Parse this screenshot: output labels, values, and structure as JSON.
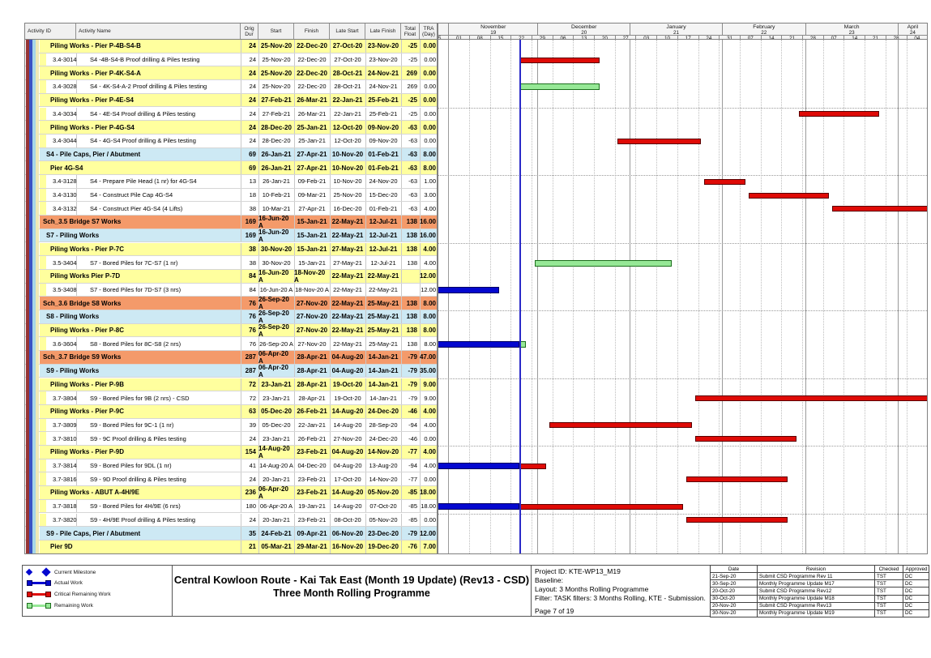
{
  "colors": {
    "band_yellow": "#FFFF9E",
    "band_cyan": "#CDE9F4",
    "band_orange": "#F49A6A",
    "bar_critical": "#DF0A06",
    "bar_remaining": "#96E896",
    "bar_actual": "#0408CF",
    "data_date_line": "#2A2AC8",
    "legend_blue": "#0408CF",
    "stripes": [
      "#963434",
      "#3A52C4",
      "#A6D6E8",
      "#EFE9B4"
    ]
  },
  "table_header": {
    "activity_id": "Activity ID",
    "activity_name": "Activity Name",
    "orig_dur": "Orig Dur",
    "start": "Start",
    "finish": "Finish",
    "late_start": "Late Start",
    "late_finish": "Late Finish",
    "total_float": "Total Float",
    "tra": "TRA (Day)"
  },
  "chart_data": {
    "type": "gantt",
    "data_date": "2020-11-25",
    "timeline": {
      "origin": "2020-10-25",
      "end": "2021-04-11",
      "week_labels": [
        "25",
        "01",
        "08",
        "15",
        "22",
        "29",
        "06",
        "13",
        "20",
        "27",
        "03",
        "10",
        "17",
        "24",
        "31",
        "07",
        "14",
        "21",
        "28",
        "07",
        "14",
        "21",
        "28",
        "04"
      ],
      "months": [
        {
          "label": "",
          "num": "",
          "from": "2020-10-25"
        },
        {
          "label": "November",
          "num": "19",
          "from": "2020-11-01"
        },
        {
          "label": "December",
          "num": "20",
          "from": "2020-12-01"
        },
        {
          "label": "January",
          "num": "21",
          "from": "2021-01-01"
        },
        {
          "label": "February",
          "num": "22",
          "from": "2021-02-01"
        },
        {
          "label": "March",
          "num": "23",
          "from": "2021-03-01"
        },
        {
          "label": "April",
          "num": "24",
          "from": "2021-04-01"
        }
      ]
    },
    "rows": [
      {
        "type": "summary",
        "band": "yellow",
        "name": "Piling Works - Pier P-4B-S4-B",
        "dur": "24",
        "start": "25-Nov-20",
        "finish": "22-Dec-20",
        "late_start": "27-Oct-20",
        "late_finish": "23-Nov-20",
        "float": "-25",
        "tra": "0.00",
        "bars": []
      },
      {
        "type": "activity",
        "id": "3.4-3014",
        "name": "S4 -4B-S4-B Proof drilling & Piles testing",
        "dur": "24",
        "start": "25-Nov-20",
        "finish": "22-Dec-20",
        "late_start": "27-Oct-20",
        "late_finish": "23-Nov-20",
        "float": "-25",
        "tra": "0.00",
        "bars": [
          {
            "kind": "critical",
            "from": "2020-11-25",
            "to": "2020-12-22"
          }
        ]
      },
      {
        "type": "summary",
        "band": "yellow",
        "name": "Piling Works - Pier P-4K-S4-A",
        "dur": "24",
        "start": "25-Nov-20",
        "finish": "22-Dec-20",
        "late_start": "28-Oct-21",
        "late_finish": "24-Nov-21",
        "float": "269",
        "tra": "0.00",
        "bars": []
      },
      {
        "type": "activity",
        "id": "3.4-3028",
        "name": "S4 - 4K-S4-A-2 Proof drilling & Piles testing",
        "dur": "24",
        "start": "25-Nov-20",
        "finish": "22-Dec-20",
        "late_start": "28-Oct-21",
        "late_finish": "24-Nov-21",
        "float": "269",
        "tra": "0.00",
        "bars": [
          {
            "kind": "remaining",
            "from": "2020-11-25",
            "to": "2020-12-22"
          }
        ]
      },
      {
        "type": "summary",
        "band": "yellow",
        "name": "Piling Works - Pier P-4E-S4",
        "dur": "24",
        "start": "27-Feb-21",
        "finish": "26-Mar-21",
        "late_start": "22-Jan-21",
        "late_finish": "25-Feb-21",
        "float": "-25",
        "tra": "0.00",
        "bars": []
      },
      {
        "type": "activity",
        "id": "3.4-3034",
        "name": "S4 - 4E-S4  Proof drilling & Piles testing",
        "dur": "24",
        "start": "27-Feb-21",
        "finish": "26-Mar-21",
        "late_start": "22-Jan-21",
        "late_finish": "25-Feb-21",
        "float": "-25",
        "tra": "0.00",
        "bars": [
          {
            "kind": "critical",
            "from": "2021-02-27",
            "to": "2021-03-26"
          }
        ]
      },
      {
        "type": "summary",
        "band": "yellow",
        "name": "Piling Works - Pier P-4G-S4",
        "dur": "24",
        "start": "28-Dec-20",
        "finish": "25-Jan-21",
        "late_start": "12-Oct-20",
        "late_finish": "09-Nov-20",
        "float": "-63",
        "tra": "0.00",
        "bars": []
      },
      {
        "type": "activity",
        "id": "3.4-3044",
        "name": "S4 - 4G-S4 Proof drilling & Piles testing",
        "dur": "24",
        "start": "28-Dec-20",
        "finish": "25-Jan-21",
        "late_start": "12-Oct-20",
        "late_finish": "09-Nov-20",
        "float": "-63",
        "tra": "0.00",
        "bars": [
          {
            "kind": "critical",
            "from": "2020-12-28",
            "to": "2021-01-25"
          }
        ]
      },
      {
        "type": "summary",
        "band": "cyan",
        "name": "S4 - Pile Caps, Pier / Abutment",
        "dur": "69",
        "start": "26-Jan-21",
        "finish": "27-Apr-21",
        "late_start": "10-Nov-20",
        "late_finish": "01-Feb-21",
        "float": "-63",
        "tra": "8.00",
        "bars": []
      },
      {
        "type": "summary",
        "band": "yellow",
        "name": "Pier 4G-S4",
        "dur": "69",
        "start": "26-Jan-21",
        "finish": "27-Apr-21",
        "late_start": "10-Nov-20",
        "late_finish": "01-Feb-21",
        "float": "-63",
        "tra": "8.00",
        "bars": []
      },
      {
        "type": "activity",
        "id": "3.4-3128",
        "name": "S4 - Prepare Pile Head (1 nr) for 4G-S4",
        "dur": "13",
        "start": "26-Jan-21",
        "finish": "09-Feb-21",
        "late_start": "10-Nov-20",
        "late_finish": "24-Nov-20",
        "float": "-63",
        "tra": "1.00",
        "bars": [
          {
            "kind": "critical",
            "from": "2021-01-26",
            "to": "2021-02-09"
          }
        ]
      },
      {
        "type": "activity",
        "id": "3.4-3130",
        "name": "S4 - Construct Pile Cap 4G-S4",
        "dur": "18",
        "start": "10-Feb-21",
        "finish": "09-Mar-21",
        "late_start": "25-Nov-20",
        "late_finish": "15-Dec-20",
        "float": "-63",
        "tra": "3.00",
        "bars": [
          {
            "kind": "critical",
            "from": "2021-02-10",
            "to": "2021-03-09"
          }
        ]
      },
      {
        "type": "activity",
        "id": "3.4-3132",
        "name": "S4 - Construct Pier 4G-S4 (4 Lifts)",
        "dur": "38",
        "start": "10-Mar-21",
        "finish": "27-Apr-21",
        "late_start": "16-Dec-20",
        "late_finish": "01-Feb-21",
        "float": "-63",
        "tra": "4.00",
        "bars": [
          {
            "kind": "critical",
            "from": "2021-03-10",
            "to": "2021-04-27"
          }
        ]
      },
      {
        "type": "summary",
        "band": "orange",
        "name": "Sch_3.5 Bridge S7 Works",
        "dur": "169",
        "start": "16-Jun-20 A",
        "finish": "15-Jan-21",
        "late_start": "22-May-21",
        "late_finish": "12-Jul-21",
        "float": "138",
        "tra": "16.00",
        "bars": []
      },
      {
        "type": "summary",
        "band": "cyan",
        "name": "S7 - Piling Works",
        "dur": "169",
        "start": "16-Jun-20 A",
        "finish": "15-Jan-21",
        "late_start": "22-May-21",
        "late_finish": "12-Jul-21",
        "float": "138",
        "tra": "16.00",
        "bars": []
      },
      {
        "type": "summary",
        "band": "yellow",
        "name": "Piling Works - Pier P-7C",
        "dur": "38",
        "start": "30-Nov-20",
        "finish": "15-Jan-21",
        "late_start": "27-May-21",
        "late_finish": "12-Jul-21",
        "float": "138",
        "tra": "4.00",
        "bars": []
      },
      {
        "type": "activity",
        "id": "3.5-3404",
        "name": "S7 - Bored Piles for 7C-S7 (1 nr)",
        "dur": "38",
        "start": "30-Nov-20",
        "finish": "15-Jan-21",
        "late_start": "27-May-21",
        "late_finish": "12-Jul-21",
        "float": "138",
        "tra": "4.00",
        "bars": [
          {
            "kind": "remaining",
            "from": "2020-11-30",
            "to": "2021-01-15"
          }
        ]
      },
      {
        "type": "summary",
        "band": "yellow",
        "name": "Piling Works Pier P-7D",
        "dur": "84",
        "start": "16-Jun-20 A",
        "finish": "18-Nov-20 A",
        "late_start": "22-May-21",
        "late_finish": "22-May-21",
        "float": "",
        "tra": "12.00",
        "bars": []
      },
      {
        "type": "activity",
        "id": "3.5-3408",
        "name": "S7 - Bored Piles for 7D-S7 (3 nrs)",
        "dur": "84",
        "start": "16-Jun-20 A",
        "finish": "18-Nov-20 A",
        "late_start": "22-May-21",
        "late_finish": "22-May-21",
        "float": "",
        "tra": "12.00",
        "bars": [
          {
            "kind": "actual",
            "from": "2020-06-16",
            "to": "2020-11-18"
          }
        ]
      },
      {
        "type": "summary",
        "band": "orange",
        "name": "Sch_3.6 Bridge S8 Works",
        "dur": "76",
        "start": "26-Sep-20 A",
        "finish": "27-Nov-20",
        "late_start": "22-May-21",
        "late_finish": "25-May-21",
        "float": "138",
        "tra": "8.00",
        "bars": []
      },
      {
        "type": "summary",
        "band": "cyan",
        "name": "S8 - Piling Works",
        "dur": "76",
        "start": "26-Sep-20 A",
        "finish": "27-Nov-20",
        "late_start": "22-May-21",
        "late_finish": "25-May-21",
        "float": "138",
        "tra": "8.00",
        "bars": []
      },
      {
        "type": "summary",
        "band": "yellow",
        "name": "Piling Works - Pier P-8C",
        "dur": "76",
        "start": "26-Sep-20 A",
        "finish": "27-Nov-20",
        "late_start": "22-May-21",
        "late_finish": "25-May-21",
        "float": "138",
        "tra": "8.00",
        "bars": []
      },
      {
        "type": "activity",
        "id": "3.6-3604",
        "name": "S8 - Bored Piles for 8C-S8 (2 nrs)",
        "dur": "76",
        "start": "26-Sep-20 A",
        "finish": "27-Nov-20",
        "late_start": "22-May-21",
        "late_finish": "25-May-21",
        "float": "138",
        "tra": "8.00",
        "bars": [
          {
            "kind": "actual",
            "from": "2020-09-26",
            "to": "2020-11-25"
          },
          {
            "kind": "remaining",
            "from": "2020-11-25",
            "to": "2020-11-27"
          }
        ]
      },
      {
        "type": "summary",
        "band": "orange",
        "name": "Sch_3.7 Bridge S9 Works",
        "dur": "287",
        "start": "06-Apr-20 A",
        "finish": "28-Apr-21",
        "late_start": "04-Aug-20",
        "late_finish": "14-Jan-21",
        "float": "-79",
        "tra": "47.00",
        "bars": []
      },
      {
        "type": "summary",
        "band": "cyan",
        "name": "S9 - Piling Works",
        "dur": "287",
        "start": "06-Apr-20 A",
        "finish": "28-Apr-21",
        "late_start": "04-Aug-20",
        "late_finish": "14-Jan-21",
        "float": "-79",
        "tra": "35.00",
        "bars": []
      },
      {
        "type": "summary",
        "band": "yellow",
        "name": "Piling Works - Pier P-9B",
        "dur": "72",
        "start": "23-Jan-21",
        "finish": "28-Apr-21",
        "late_start": "19-Oct-20",
        "late_finish": "14-Jan-21",
        "float": "-79",
        "tra": "9.00",
        "bars": []
      },
      {
        "type": "activity",
        "id": "3.7-3804",
        "name": "S9 - Bored Piles for 9B (2 nrs) - CSD",
        "dur": "72",
        "start": "23-Jan-21",
        "finish": "28-Apr-21",
        "late_start": "19-Oct-20",
        "late_finish": "14-Jan-21",
        "float": "-79",
        "tra": "9.00",
        "bars": [
          {
            "kind": "critical",
            "from": "2021-01-23",
            "to": "2021-04-28"
          }
        ]
      },
      {
        "type": "summary",
        "band": "yellow",
        "name": "Piling Works - Pier P-9C",
        "dur": "63",
        "start": "05-Dec-20",
        "finish": "26-Feb-21",
        "late_start": "14-Aug-20",
        "late_finish": "24-Dec-20",
        "float": "-46",
        "tra": "4.00",
        "bars": []
      },
      {
        "type": "activity",
        "id": "3.7-3809",
        "name": "S9 - Bored Piles for 9C-1 (1 nr)",
        "dur": "39",
        "start": "05-Dec-20",
        "finish": "22-Jan-21",
        "late_start": "14-Aug-20",
        "late_finish": "28-Sep-20",
        "float": "-94",
        "tra": "4.00",
        "bars": [
          {
            "kind": "critical",
            "from": "2020-12-05",
            "to": "2021-01-22"
          }
        ]
      },
      {
        "type": "activity",
        "id": "3.7-3810",
        "name": "S9 - 9C Proof drilling & Piles testing",
        "dur": "24",
        "start": "23-Jan-21",
        "finish": "26-Feb-21",
        "late_start": "27-Nov-20",
        "late_finish": "24-Dec-20",
        "float": "-46",
        "tra": "0.00",
        "bars": [
          {
            "kind": "critical",
            "from": "2021-01-23",
            "to": "2021-02-26"
          }
        ]
      },
      {
        "type": "summary",
        "band": "yellow",
        "name": "Piling Works - Pier P-9D",
        "dur": "154",
        "start": "14-Aug-20 A",
        "finish": "23-Feb-21",
        "late_start": "04-Aug-20",
        "late_finish": "14-Nov-20",
        "float": "-77",
        "tra": "4.00",
        "bars": []
      },
      {
        "type": "activity",
        "id": "3.7-3814",
        "name": "S9 - Bored Piles for 9DL (1 nr)",
        "dur": "41",
        "start": "14-Aug-20 A",
        "finish": "04-Dec-20",
        "late_start": "04-Aug-20",
        "late_finish": "13-Aug-20",
        "float": "-94",
        "tra": "4.00",
        "bars": [
          {
            "kind": "actual",
            "from": "2020-08-14",
            "to": "2020-11-25"
          },
          {
            "kind": "critical",
            "from": "2020-11-25",
            "to": "2020-12-04"
          }
        ]
      },
      {
        "type": "activity",
        "id": "3.7-3816",
        "name": "S9 - 9D Proof drilling & Piles testing",
        "dur": "24",
        "start": "20-Jan-21",
        "finish": "23-Feb-21",
        "late_start": "17-Oct-20",
        "late_finish": "14-Nov-20",
        "float": "-77",
        "tra": "0.00",
        "bars": [
          {
            "kind": "critical",
            "from": "2021-01-20",
            "to": "2021-02-23"
          }
        ]
      },
      {
        "type": "summary",
        "band": "yellow",
        "name": "Piling Works - ABUT A-4H/9E",
        "dur": "236",
        "start": "06-Apr-20 A",
        "finish": "23-Feb-21",
        "late_start": "14-Aug-20",
        "late_finish": "05-Nov-20",
        "float": "-85",
        "tra": "18.00",
        "bars": []
      },
      {
        "type": "activity",
        "id": "3.7-3818",
        "name": "S9 - Bored Piles for 4H/9E (6 nrs)",
        "dur": "180",
        "start": "06-Apr-20 A",
        "finish": "19-Jan-21",
        "late_start": "14-Aug-20",
        "late_finish": "07-Oct-20",
        "float": "-85",
        "tra": "18.00",
        "bars": [
          {
            "kind": "actual",
            "from": "2020-04-06",
            "to": "2020-11-25"
          },
          {
            "kind": "critical",
            "from": "2020-11-25",
            "to": "2021-01-19"
          }
        ]
      },
      {
        "type": "activity",
        "id": "3.7-3820",
        "name": "S9 - 4H/9E Proof drilling & Piles testing",
        "dur": "24",
        "start": "20-Jan-21",
        "finish": "23-Feb-21",
        "late_start": "08-Oct-20",
        "late_finish": "05-Nov-20",
        "float": "-85",
        "tra": "0.00",
        "bars": [
          {
            "kind": "critical",
            "from": "2021-01-20",
            "to": "2021-02-23"
          }
        ]
      },
      {
        "type": "summary",
        "band": "cyan",
        "name": "S9 - Pile Caps, Pier / Abutment",
        "dur": "35",
        "start": "24-Feb-21",
        "finish": "09-Apr-21",
        "late_start": "06-Nov-20",
        "late_finish": "23-Dec-20",
        "float": "-79",
        "tra": "12.00",
        "bars": []
      },
      {
        "type": "summary",
        "band": "yellow",
        "name": "Pier 9D",
        "dur": "21",
        "start": "05-Mar-21",
        "finish": "29-Mar-21",
        "late_start": "16-Nov-20",
        "late_finish": "19-Dec-20",
        "float": "-76",
        "tra": "7.00",
        "bars": []
      }
    ]
  },
  "legend": [
    {
      "symbol": "milestone",
      "label": "Current Milestone"
    },
    {
      "symbol": "actual",
      "label": "Actual Work"
    },
    {
      "symbol": "critical",
      "label": "Critical Remaining Work"
    },
    {
      "symbol": "remaining",
      "label": "Remaining Work"
    }
  ],
  "footer": {
    "title_line1": "Central Kowloon Route - Kai Tak East (Month 19 Update) (Rev13 - CSD)",
    "title_line2": "Three Month Rolling Programme",
    "info_lines": [
      "Project ID: KTE-WP13_M19",
      "Baseline:",
      "Layout: 3 Months Rolling Programme",
      "Filter: TASK filters: 3 Months Rolling, KTE - Submission."
    ],
    "page_label": "Page 7 of 19"
  },
  "revisions": {
    "headers": [
      "Date",
      "Revision",
      "Checked",
      "Approved"
    ],
    "rows": [
      [
        "21-Sep-20",
        "Submit CSD Programme Rev 11",
        "TST",
        "DC"
      ],
      [
        "30-Sep-20",
        "Monthly Programme Update M17",
        "TST",
        "DC"
      ],
      [
        "20-Oct-20",
        "Submit CSD Programme Rev12",
        "TST",
        "DC"
      ],
      [
        "30-Oct-20",
        "Monthly Programme Update M18",
        "TST",
        "DC"
      ],
      [
        "20-Nov-20",
        "Submit CSD Programme Rev13",
        "TST",
        "DC"
      ],
      [
        "30-Nov-20",
        "Monthly Programme Update M19",
        "TST",
        "DC"
      ]
    ]
  }
}
